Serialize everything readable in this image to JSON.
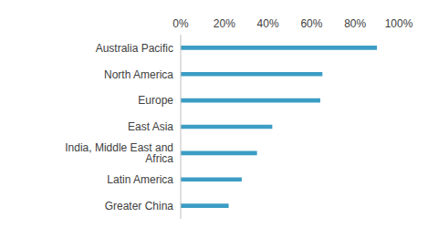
{
  "chart_data": {
    "type": "bar",
    "orientation": "horizontal",
    "categories": [
      "Australia Pacific",
      "North America",
      "Europe",
      "East Asia",
      "India, Middle East and Africa",
      "Latin America",
      "Greater China"
    ],
    "values": [
      90,
      65,
      64,
      42,
      35,
      28,
      22
    ],
    "color": "#3c9dc4",
    "xlim": [
      0,
      100
    ],
    "xticks": [
      {
        "value": 0,
        "label": "0%"
      },
      {
        "value": 20,
        "label": "20%"
      },
      {
        "value": 40,
        "label": "40%"
      },
      {
        "value": 60,
        "label": "60%"
      },
      {
        "value": 80,
        "label": "80%"
      },
      {
        "value": 100,
        "label": "100%"
      }
    ],
    "grid": false
  }
}
